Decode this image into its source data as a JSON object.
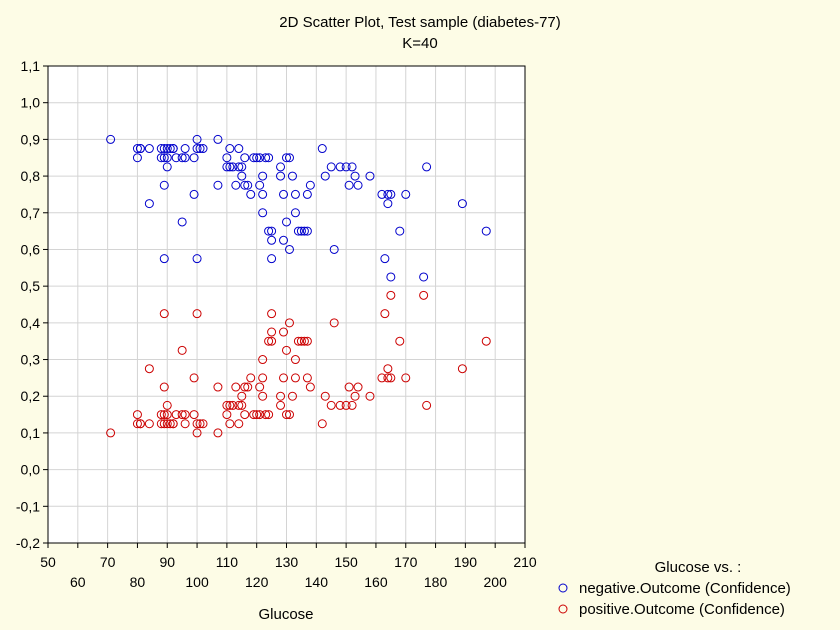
{
  "chart_data": {
    "type": "scatter",
    "title": "2D Scatter Plot, Test sample (diabetes-77)",
    "subtitle": "K=40",
    "xlabel": "Glucose",
    "ylabel": "",
    "xlim": [
      50,
      210
    ],
    "ylim": [
      -0.2,
      1.1
    ],
    "x_ticks_top": [
      "50",
      "70",
      "90",
      "110",
      "130",
      "150",
      "170",
      "190",
      "210"
    ],
    "x_ticks_bottom": [
      "60",
      "80",
      "100",
      "120",
      "140",
      "160",
      "180",
      "200"
    ],
    "y_ticks": [
      "1,1",
      "1,0",
      "0,9",
      "0,8",
      "0,7",
      "0,6",
      "0,5",
      "0,4",
      "0,3",
      "0,2",
      "0,1",
      "0,0",
      "-0,1",
      "-0,2"
    ],
    "grid": true,
    "legend_title": "Glucose  vs. :",
    "legend_position": "bottom-right",
    "series": [
      {
        "name": "negative.Outcome (Confidence)",
        "color": "#0000cc",
        "x": [
          71,
          80,
          80,
          81,
          81,
          84,
          84,
          88,
          88,
          89,
          89,
          89,
          89,
          90,
          90,
          90,
          91,
          92,
          92,
          93,
          95,
          95,
          96,
          96,
          99,
          99,
          100,
          100,
          100,
          101,
          102,
          107,
          107,
          110,
          110,
          111,
          111,
          112,
          113,
          114,
          114,
          115,
          115,
          116,
          116,
          117,
          118,
          119,
          120,
          121,
          121,
          122,
          122,
          122,
          123,
          124,
          124,
          125,
          125,
          125,
          128,
          128,
          129,
          129,
          130,
          130,
          131,
          131,
          132,
          133,
          133,
          134,
          135,
          136,
          137,
          137,
          138,
          142,
          143,
          145,
          146,
          148,
          150,
          151,
          152,
          153,
          154,
          158,
          162,
          163,
          164,
          164,
          165,
          165,
          168,
          170,
          176,
          177,
          189,
          197
        ],
        "y": [
          0.9,
          0.85,
          0.875,
          0.875,
          0.875,
          0.875,
          0.725,
          0.875,
          0.85,
          0.875,
          0.85,
          0.775,
          0.575,
          0.875,
          0.85,
          0.825,
          0.875,
          0.875,
          0.875,
          0.85,
          0.675,
          0.85,
          0.875,
          0.85,
          0.85,
          0.75,
          0.575,
          0.875,
          0.9,
          0.875,
          0.875,
          0.9,
          0.775,
          0.85,
          0.825,
          0.875,
          0.825,
          0.825,
          0.775,
          0.875,
          0.825,
          0.8,
          0.825,
          0.85,
          0.775,
          0.775,
          0.75,
          0.85,
          0.85,
          0.85,
          0.775,
          0.75,
          0.8,
          0.7,
          0.85,
          0.65,
          0.85,
          0.575,
          0.625,
          0.65,
          0.8,
          0.825,
          0.75,
          0.625,
          0.675,
          0.85,
          0.6,
          0.85,
          0.8,
          0.7,
          0.75,
          0.65,
          0.65,
          0.65,
          0.65,
          0.75,
          0.775,
          0.875,
          0.8,
          0.825,
          0.6,
          0.825,
          0.825,
          0.775,
          0.825,
          0.8,
          0.775,
          0.8,
          0.75,
          0.575,
          0.725,
          0.75,
          0.525,
          0.75,
          0.65,
          0.75,
          0.525,
          0.825,
          0.725,
          0.65
        ]
      },
      {
        "name": "positive.Outcome (Confidence)",
        "color": "#cc0000",
        "x": [
          71,
          80,
          80,
          81,
          81,
          84,
          84,
          88,
          88,
          89,
          89,
          89,
          89,
          90,
          90,
          90,
          91,
          92,
          92,
          93,
          95,
          95,
          96,
          96,
          99,
          99,
          100,
          100,
          100,
          101,
          102,
          107,
          107,
          110,
          110,
          111,
          111,
          112,
          113,
          114,
          114,
          115,
          115,
          116,
          116,
          117,
          118,
          119,
          120,
          121,
          121,
          122,
          122,
          122,
          123,
          124,
          124,
          125,
          125,
          125,
          128,
          128,
          129,
          129,
          130,
          130,
          131,
          131,
          132,
          133,
          133,
          134,
          135,
          136,
          137,
          137,
          138,
          142,
          143,
          145,
          146,
          148,
          150,
          151,
          152,
          153,
          154,
          158,
          162,
          163,
          164,
          164,
          165,
          165,
          168,
          170,
          176,
          177,
          189,
          197
        ],
        "y": [
          0.1,
          0.15,
          0.125,
          0.125,
          0.125,
          0.125,
          0.275,
          0.125,
          0.15,
          0.125,
          0.15,
          0.225,
          0.425,
          0.125,
          0.15,
          0.175,
          0.125,
          0.125,
          0.125,
          0.15,
          0.325,
          0.15,
          0.125,
          0.15,
          0.15,
          0.25,
          0.425,
          0.125,
          0.1,
          0.125,
          0.125,
          0.1,
          0.225,
          0.15,
          0.175,
          0.125,
          0.175,
          0.175,
          0.225,
          0.125,
          0.175,
          0.2,
          0.175,
          0.15,
          0.225,
          0.225,
          0.25,
          0.15,
          0.15,
          0.15,
          0.225,
          0.25,
          0.2,
          0.3,
          0.15,
          0.35,
          0.15,
          0.425,
          0.375,
          0.35,
          0.2,
          0.175,
          0.25,
          0.375,
          0.325,
          0.15,
          0.4,
          0.15,
          0.2,
          0.3,
          0.25,
          0.35,
          0.35,
          0.35,
          0.35,
          0.25,
          0.225,
          0.125,
          0.2,
          0.175,
          0.4,
          0.175,
          0.175,
          0.225,
          0.175,
          0.2,
          0.225,
          0.2,
          0.25,
          0.425,
          0.275,
          0.25,
          0.475,
          0.25,
          0.35,
          0.25,
          0.475,
          0.175,
          0.275,
          0.35
        ]
      }
    ]
  }
}
